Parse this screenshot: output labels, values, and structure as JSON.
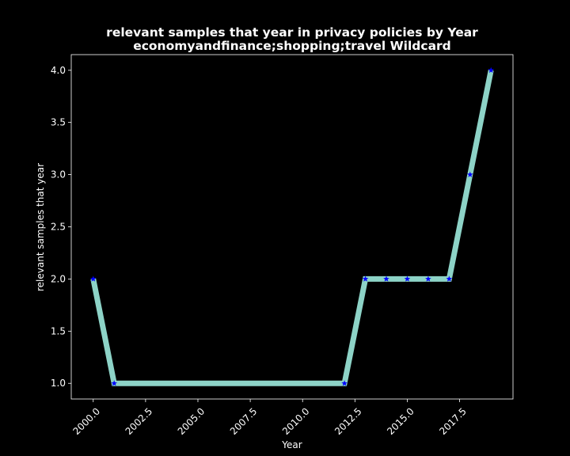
{
  "chart_data": {
    "type": "line",
    "title": "relevant samples that year in privacy policies by Year",
    "subtitle": "economyandfinance;shopping;travel Wildcard",
    "xlabel": "Year",
    "ylabel": "relevant samples that year",
    "xlim": [
      1998.95,
      2020.05
    ],
    "ylim": [
      0.85,
      4.15
    ],
    "x_ticks": [
      2000.0,
      2002.5,
      2005.0,
      2007.5,
      2010.0,
      2012.5,
      2015.0,
      2017.5
    ],
    "x_tick_labels": [
      "2000.0",
      "2002.5",
      "2005.0",
      "2007.5",
      "2010.0",
      "2012.5",
      "2015.0",
      "2017.5"
    ],
    "y_ticks": [
      1.0,
      1.5,
      2.0,
      2.5,
      3.0,
      3.5,
      4.0
    ],
    "y_tick_labels": [
      "1.0",
      "1.5",
      "2.0",
      "2.5",
      "3.0",
      "3.5",
      "4.0"
    ],
    "grid": false,
    "series": [
      {
        "x": [
          2000,
          2001,
          2012,
          2013,
          2014,
          2015,
          2016,
          2017,
          2018,
          2019
        ],
        "values": [
          2,
          1,
          1,
          2,
          2,
          2,
          2,
          2,
          3,
          4
        ],
        "line_color": "#8dd3c7",
        "marker_color": "#0000ff",
        "marker": "star"
      }
    ]
  },
  "colors": {
    "background": "#000000",
    "foreground": "#ffffff"
  }
}
